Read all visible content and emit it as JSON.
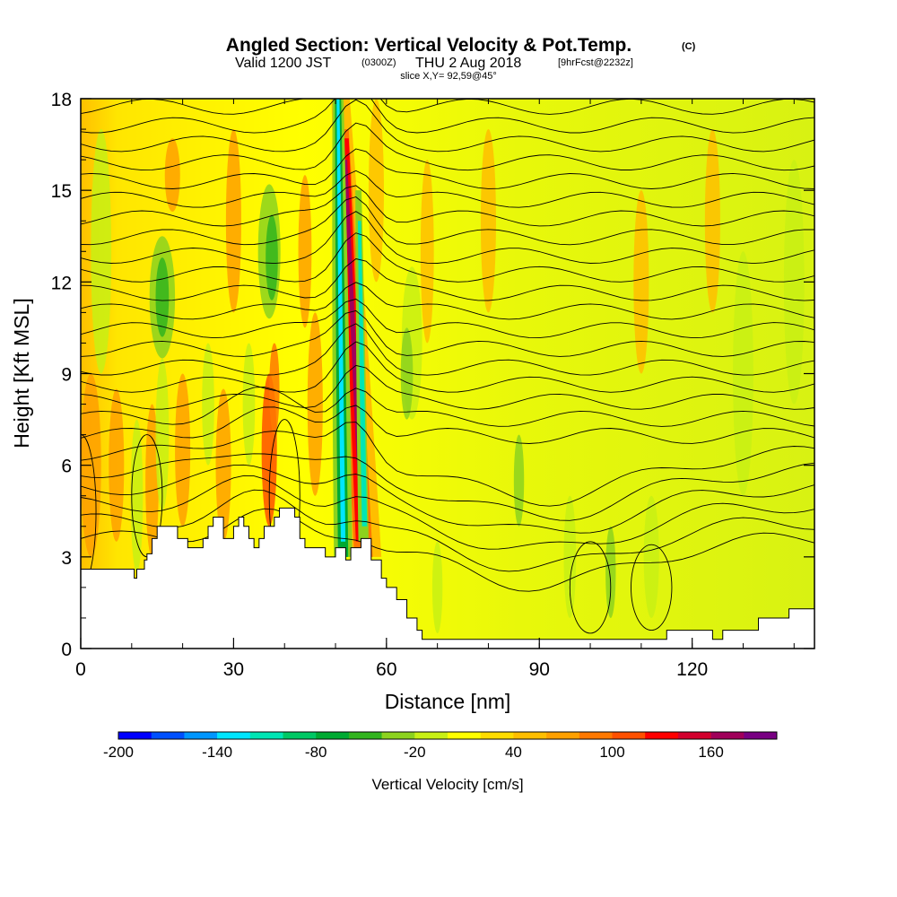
{
  "chart_data": {
    "type": "heatmap",
    "title": "Angled Section: Vertical Velocity & Pot.Temp.",
    "title_unit": "(C)",
    "subtitle_valid": "Valid 1200 JST",
    "subtitle_utc": "(0300Z)",
    "subtitle_date": "THU 2 Aug 2018",
    "subtitle_fcst": "[9hrFcst@2232z]",
    "slice_label": "slice X,Y= 92,59@45°",
    "xlabel": "Distance [nm]",
    "ylabel": "Height [Kft MSL]",
    "xlim": [
      0,
      144
    ],
    "ylim": [
      0,
      18
    ],
    "x_ticks": [
      0,
      30,
      60,
      90,
      120
    ],
    "y_ticks": [
      0,
      3,
      6,
      9,
      12,
      15,
      18
    ],
    "colorbar": {
      "label": "Vertical Velocity [cm/s]",
      "tick_labels": [
        "-200",
        "-140",
        "-80",
        "-20",
        "40",
        "100",
        "160"
      ],
      "min": -200,
      "max": 200,
      "step": 20,
      "colors": [
        "#0000ff",
        "#0050ff",
        "#0096ff",
        "#00e6ff",
        "#00e6b4",
        "#00c864",
        "#00aa32",
        "#32b41e",
        "#8cd21e",
        "#c8f014",
        "#ffff00",
        "#ffdc00",
        "#ffbe00",
        "#ffa000",
        "#ff7800",
        "#ff5000",
        "#ff0000",
        "#d2002d",
        "#a0005a",
        "#780082"
      ]
    },
    "background_field": "weak vertical velocity, mostly -20 to 40 cm/s",
    "updraft_core": {
      "x": 54,
      "y_range": [
        3,
        17
      ],
      "max": 160
    },
    "downdraft_core": {
      "x": 51.5,
      "y_range": [
        3,
        18
      ],
      "min": -140
    },
    "contour_field": "potential temperature (C)",
    "terrain_profile": [
      [
        0,
        2.6
      ],
      [
        10,
        2.6
      ],
      [
        10.5,
        2.3
      ],
      [
        11,
        2.6
      ],
      [
        12,
        2.6
      ],
      [
        12.5,
        2.9
      ],
      [
        13,
        3.1
      ],
      [
        14,
        3.6
      ],
      [
        15,
        4.0
      ],
      [
        18,
        4.0
      ],
      [
        19,
        3.6
      ],
      [
        20,
        3.6
      ],
      [
        21,
        3.3
      ],
      [
        23,
        3.3
      ],
      [
        24,
        3.6
      ],
      [
        25,
        4.0
      ],
      [
        26,
        4.3
      ],
      [
        27,
        4.3
      ],
      [
        28,
        3.6
      ],
      [
        30,
        4.0
      ],
      [
        31,
        4.3
      ],
      [
        32,
        4.0
      ],
      [
        33,
        3.6
      ],
      [
        34,
        3.3
      ],
      [
        35,
        3.6
      ],
      [
        36,
        4.0
      ],
      [
        38,
        4.3
      ],
      [
        39,
        4.6
      ],
      [
        41,
        4.6
      ],
      [
        42,
        4.3
      ],
      [
        43,
        3.6
      ],
      [
        44,
        3.3
      ],
      [
        47,
        3.3
      ],
      [
        48,
        3.0
      ],
      [
        50,
        3.3
      ],
      [
        52,
        2.9
      ],
      [
        53,
        3.3
      ],
      [
        55,
        3.6
      ],
      [
        57,
        2.9
      ],
      [
        58,
        2.9
      ],
      [
        59,
        2.3
      ],
      [
        60,
        2.0
      ],
      [
        62,
        1.6
      ],
      [
        64,
        1.0
      ],
      [
        66,
        0.6
      ],
      [
        67,
        0.3
      ],
      [
        114,
        0.3
      ],
      [
        115,
        0.6
      ],
      [
        123,
        0.6
      ],
      [
        124,
        0.3
      ],
      [
        125,
        0.3
      ],
      [
        126,
        0.6
      ],
      [
        133,
        1.0
      ],
      [
        138,
        1.0
      ],
      [
        139,
        1.3
      ],
      [
        144,
        1.3
      ]
    ]
  }
}
